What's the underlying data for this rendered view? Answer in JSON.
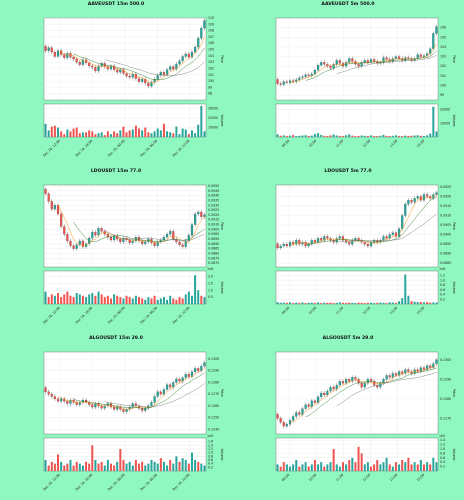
{
  "colors": {
    "background": "#8ff7c0",
    "up": "#26a69a",
    "down": "#ef5350",
    "ma1": "#ff8c00",
    "ma2": "#2a7f2a",
    "ma3": "#7a7a7a"
  },
  "chart_data": [
    {
      "type": "candlestick",
      "title": "AAVEUSDT 15m 500.0",
      "ylabel": "Price",
      "volume_label": "Volume",
      "ylim": [
        97,
        110
      ],
      "price_ticks": [
        "98",
        "99",
        "100",
        "101",
        "102",
        "103",
        "104",
        "105",
        "106",
        "107",
        "108",
        "109",
        "110"
      ],
      "volume_ticks": [
        "10000",
        "20000",
        "30000"
      ],
      "vol_max": 35000,
      "x_tick_labels": [
        "Dec 18, 12:00",
        "Dec 18, 18:00",
        "Dec 19, 00:00",
        "Dec 19, 06:00",
        "Dec 19, 12:00"
      ],
      "close": [
        104.8,
        105.3,
        104.6,
        103.9,
        104.8,
        104.2,
        103.7,
        104.4,
        103.8,
        103.5,
        103.0,
        102.6,
        103.4,
        102.9,
        102.4,
        102.2,
        101.6,
        102.4,
        102.8,
        102.3,
        101.9,
        102.4,
        101.8,
        101.4,
        101.8,
        101.2,
        100.8,
        100.6,
        101.1,
        100.4,
        99.9,
        100.3,
        99.7,
        99.2,
        99.8,
        100.3,
        100.9,
        101.4,
        101.0,
        101.8,
        102.3,
        101.9,
        102.7,
        103.2,
        103.9,
        104.3,
        103.8,
        104.6,
        105.4,
        106.8,
        108.4,
        109.6
      ],
      "volume": [
        14000,
        7000,
        11000,
        12000,
        10000,
        6000,
        3000,
        8000,
        6000,
        9000,
        10000,
        4000,
        5000,
        5000,
        7000,
        6000,
        3000,
        4000,
        5000,
        2000,
        6000,
        3000,
        6000,
        4000,
        7000,
        11000,
        5000,
        7000,
        8000,
        12000,
        9000,
        7000,
        10000,
        5000,
        4000,
        6000,
        9000,
        7000,
        14000,
        6000,
        5000,
        4000,
        11000,
        3000,
        9000,
        8000,
        3000,
        7000,
        4000,
        13000,
        33000,
        6000
      ],
      "ma_windows": [
        5,
        10,
        20
      ]
    },
    {
      "type": "candlestick",
      "title": "AAVEUSDT 5m 500.0",
      "ylabel": "Price",
      "volume_label": "Volume",
      "ylim": [
        98.5,
        107
      ],
      "price_ticks": [
        "99",
        "100",
        "101",
        "102",
        "103",
        "104",
        "105",
        "106"
      ],
      "volume_ticks": [
        "10000",
        "20000"
      ],
      "vol_max": 24000,
      "x_tick_labels": [
        "09:00",
        "10:00",
        "11:00",
        "12:00",
        "13:00",
        "14:00"
      ],
      "close": [
        100.2,
        100.1,
        100.4,
        100.3,
        100.5,
        100.4,
        100.6,
        100.8,
        100.9,
        101.1,
        101.0,
        101.2,
        101.6,
        102.1,
        102.4,
        102.2,
        102.0,
        101.8,
        102.2,
        102.6,
        102.3,
        102.0,
        102.4,
        102.8,
        102.5,
        102.2,
        102.0,
        102.4,
        102.6,
        102.4,
        102.7,
        102.5,
        102.3,
        102.4,
        102.9,
        102.7,
        102.5,
        102.8,
        103.0,
        102.8,
        102.6,
        102.9,
        102.8,
        102.6,
        102.8,
        103.2,
        103.0,
        103.1,
        103.3,
        103.8,
        105.4,
        106.1
      ],
      "volume": [
        2000,
        900,
        1200,
        800,
        1000,
        1400,
        700,
        900,
        1100,
        1300,
        800,
        1000,
        2200,
        2800,
        1500,
        900,
        800,
        1200,
        1800,
        1100,
        800,
        700,
        1300,
        1900,
        1000,
        600,
        800,
        1100,
        900,
        700,
        1200,
        800,
        700,
        900,
        1600,
        800,
        700,
        900,
        1200,
        800,
        700,
        1000,
        800,
        900,
        1100,
        1300,
        900,
        700,
        1200,
        2500,
        22000,
        4000
      ],
      "ma_windows": [
        5,
        10,
        20
      ]
    },
    {
      "type": "candlestick",
      "title": "LDOUSDT 15m 77.0",
      "ylabel": "Price",
      "volume_label": "Volume",
      "volume_exp": "1e6",
      "ylim": [
        0.0866,
        0.0951
      ],
      "price_ticks": [
        "0.0870",
        "0.0875",
        "0.0880",
        "0.0885",
        "0.0890",
        "0.0895",
        "0.0900",
        "0.0905",
        "0.0910",
        "0.0915",
        "0.0920",
        "0.0925",
        "0.0930",
        "0.0935",
        "0.0940",
        "0.0945",
        "0.0950"
      ],
      "volume_ticks": [
        "0.5",
        "1.0",
        "1.5",
        "2.0"
      ],
      "vol_max": 2.4,
      "x_tick_labels": [
        "Dec 18, 12:00",
        "Dec 18, 18:00",
        "Dec 19, 00:00",
        "Dec 19, 06:00",
        "Dec 19, 12:00"
      ],
      "close": [
        0.0942,
        0.0934,
        0.0926,
        0.093,
        0.0921,
        0.0908,
        0.09,
        0.0893,
        0.0888,
        0.0885,
        0.0889,
        0.0893,
        0.0887,
        0.089,
        0.0896,
        0.0902,
        0.0899,
        0.0906,
        0.0903,
        0.09,
        0.0897,
        0.0894,
        0.0898,
        0.0895,
        0.0892,
        0.0896,
        0.0894,
        0.0891,
        0.0893,
        0.0897,
        0.0893,
        0.089,
        0.0892,
        0.0895,
        0.0891,
        0.0888,
        0.0892,
        0.0894,
        0.0897,
        0.09,
        0.0903,
        0.0895,
        0.0892,
        0.0889,
        0.0887,
        0.0893,
        0.0899,
        0.091,
        0.0921,
        0.0923,
        0.0918,
        0.092
      ],
      "volume": [
        0.9,
        0.5,
        0.7,
        0.6,
        0.8,
        0.5,
        0.7,
        0.9,
        0.6,
        0.5,
        0.8,
        0.7,
        0.6,
        0.5,
        0.7,
        0.8,
        0.6,
        0.9,
        0.7,
        0.5,
        0.6,
        0.4,
        0.7,
        0.6,
        0.5,
        0.4,
        0.6,
        0.5,
        0.4,
        0.6,
        0.5,
        0.4,
        0.3,
        0.5,
        0.4,
        0.6,
        0.3,
        0.4,
        0.5,
        0.3,
        0.6,
        0.4,
        0.3,
        0.5,
        0.4,
        0.7,
        0.9,
        0.6,
        2.1,
        1.0,
        0.6,
        0.5
      ],
      "ma_windows": [
        5,
        10,
        20
      ]
    },
    {
      "type": "candlestick",
      "title": "LDOUSDT 5m 77.0",
      "ylabel": "Price",
      "volume_label": "Volume",
      "volume_exp": "1e6",
      "ylim": [
        0.0883,
        0.0926
      ],
      "price_ticks": [
        "0.0885",
        "0.0890",
        "0.0895",
        "0.0900",
        "0.0905",
        "0.0910",
        "0.0915",
        "0.0920",
        "0.0925"
      ],
      "volume_ticks": [
        "0.2",
        "0.4",
        "0.6",
        "0.8",
        "1.0",
        "1.2"
      ],
      "vol_max": 1.4,
      "x_tick_labels": [
        "09:00",
        "10:00",
        "11:00",
        "12:00",
        "13:00",
        "14:00"
      ],
      "close": [
        0.0893,
        0.0894,
        0.0895,
        0.0894,
        0.0896,
        0.0895,
        0.0897,
        0.0895,
        0.0896,
        0.0894,
        0.0895,
        0.0897,
        0.0896,
        0.0898,
        0.0897,
        0.0899,
        0.0898,
        0.0897,
        0.0896,
        0.0898,
        0.0899,
        0.0897,
        0.0896,
        0.0895,
        0.0897,
        0.0898,
        0.0897,
        0.0896,
        0.0895,
        0.0894,
        0.0896,
        0.0897,
        0.0896,
        0.0897,
        0.0899,
        0.0898,
        0.09,
        0.0901,
        0.0899,
        0.0903,
        0.091,
        0.0916,
        0.0918,
        0.0917,
        0.0919,
        0.092,
        0.0918,
        0.0921,
        0.092,
        0.0919,
        0.0921,
        0.0922
      ],
      "volume": [
        0.08,
        0.05,
        0.06,
        0.05,
        0.07,
        0.04,
        0.06,
        0.05,
        0.07,
        0.04,
        0.05,
        0.06,
        0.05,
        0.07,
        0.04,
        0.06,
        0.05,
        0.06,
        0.04,
        0.05,
        0.07,
        0.05,
        0.04,
        0.06,
        0.05,
        0.04,
        0.06,
        0.05,
        0.04,
        0.05,
        0.06,
        0.04,
        0.05,
        0.06,
        0.05,
        0.04,
        0.07,
        0.06,
        0.05,
        0.12,
        0.25,
        1.25,
        0.35,
        0.12,
        0.1,
        0.08,
        0.09,
        0.07,
        0.08,
        0.06,
        0.07,
        0.06
      ],
      "ma_windows": [
        5,
        10,
        20
      ]
    },
    {
      "type": "candlestick",
      "title": "ALGOUSDT 15m 29.0",
      "ylabel": "Price",
      "volume_label": "Volume",
      "volume_exp": "1e5",
      "ylim": [
        0.1236,
        0.1306
      ],
      "price_ticks": [
        "0.1240",
        "0.1250",
        "0.1260",
        "0.1270",
        "0.1280",
        "0.1290",
        "0.1300"
      ],
      "volume_ticks": [
        "0.2",
        "0.4",
        "0.6",
        "0.8",
        "1.0",
        "1.2",
        "1.4",
        "1.6"
      ],
      "vol_max": 1.8,
      "x_tick_labels": [
        "Dec 18, 12:00",
        "Dec 18, 18:00",
        "Dec 19, 00:00",
        "Dec 19, 06:00",
        "Dec 19, 12:00"
      ],
      "close": [
        0.1272,
        0.127,
        0.1268,
        0.1266,
        0.1264,
        0.1266,
        0.1264,
        0.1262,
        0.1265,
        0.1263,
        0.1261,
        0.1263,
        0.1265,
        0.1263,
        0.1261,
        0.1259,
        0.1262,
        0.126,
        0.1258,
        0.126,
        0.1262,
        0.1259,
        0.1257,
        0.1259,
        0.1257,
        0.1255,
        0.1257,
        0.1259,
        0.1262,
        0.126,
        0.1258,
        0.1256,
        0.1258,
        0.126,
        0.1263,
        0.1268,
        0.1272,
        0.127,
        0.1274,
        0.1278,
        0.1276,
        0.128,
        0.1283,
        0.1281,
        0.1284,
        0.1287,
        0.1285,
        0.1289,
        0.1292,
        0.129,
        0.1294,
        0.1297
      ],
      "volume": [
        0.6,
        0.3,
        0.5,
        0.4,
        0.9,
        0.5,
        0.3,
        0.4,
        0.6,
        0.3,
        0.5,
        0.4,
        0.3,
        0.5,
        0.4,
        1.4,
        0.6,
        0.4,
        0.5,
        0.3,
        0.6,
        0.4,
        0.3,
        0.5,
        1.2,
        0.6,
        0.4,
        0.5,
        0.3,
        0.6,
        0.4,
        0.5,
        0.3,
        0.4,
        0.6,
        0.5,
        0.4,
        0.7,
        0.5,
        0.3,
        0.6,
        0.4,
        0.8,
        0.5,
        0.7,
        0.6,
        0.4,
        1.0,
        0.6,
        0.5,
        0.4,
        0.3
      ],
      "ma_windows": [
        5,
        10,
        20
      ]
    },
    {
      "type": "candlestick",
      "title": "ALGOUSDT 5m 29.0",
      "ylabel": "Price",
      "volume_label": "Volume",
      "volume_exp": "1e5",
      "ylim": [
        0.1262,
        0.1304
      ],
      "price_ticks": [
        "0.1270",
        "0.1280",
        "0.1290",
        "0.1300"
      ],
      "volume_ticks": [
        "0.2",
        "0.4",
        "0.6",
        "0.8",
        "1.0",
        "1.2",
        "1.4"
      ],
      "vol_max": 1.5,
      "x_tick_labels": [
        "09:00",
        "10:00",
        "11:00",
        "12:00",
        "13:00",
        "14:00"
      ],
      "close": [
        0.127,
        0.1268,
        0.1266,
        0.1267,
        0.1269,
        0.1271,
        0.1273,
        0.1272,
        0.1275,
        0.1277,
        0.1276,
        0.1279,
        0.1278,
        0.1281,
        0.1283,
        0.1282,
        0.1284,
        0.1286,
        0.1285,
        0.1287,
        0.1289,
        0.1288,
        0.129,
        0.1289,
        0.1291,
        0.129,
        0.1288,
        0.1286,
        0.1288,
        0.129,
        0.1289,
        0.1287,
        0.1286,
        0.1288,
        0.129,
        0.1292,
        0.1291,
        0.1293,
        0.1292,
        0.1294,
        0.1293,
        0.1295,
        0.1294,
        0.1293,
        0.1295,
        0.1294,
        0.1296,
        0.1295,
        0.1297,
        0.1296,
        0.1298,
        0.13
      ],
      "volume": [
        0.3,
        0.2,
        0.4,
        0.3,
        0.2,
        0.3,
        0.5,
        0.2,
        0.3,
        0.4,
        0.2,
        0.3,
        0.5,
        0.3,
        0.4,
        0.2,
        0.3,
        0.4,
        1.0,
        0.3,
        0.2,
        0.4,
        0.3,
        0.5,
        0.6,
        0.4,
        1.1,
        0.8,
        0.3,
        0.4,
        0.2,
        0.3,
        0.5,
        0.3,
        0.4,
        0.6,
        0.3,
        0.2,
        0.4,
        0.3,
        0.5,
        0.4,
        0.6,
        0.3,
        0.4,
        0.3,
        0.5,
        0.3,
        0.4,
        0.3,
        0.6,
        0.4
      ],
      "ma_windows": [
        5,
        10,
        20
      ]
    }
  ]
}
